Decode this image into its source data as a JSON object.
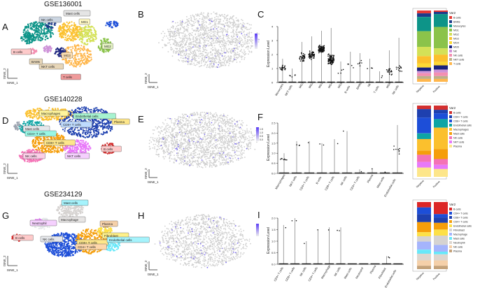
{
  "titles": [
    "GSE136001",
    "GSE140228",
    "GSE234129"
  ],
  "panel_letters": [
    "A",
    "B",
    "C",
    "D",
    "E",
    "F",
    "G",
    "H",
    "I"
  ],
  "axis": {
    "tsne1": "tSNE_1",
    "tsne2": "tSNE_2",
    "ylabel": "Expression Level"
  },
  "colors": {
    "row1": [
      "#e53935",
      "#1e3a8a",
      "#0d9488",
      "#8bc34a",
      "#d4e157",
      "#fbc02d",
      "#fdd835",
      "#1a237e",
      "#ce93d8",
      "#f48fb1",
      "#bdb08a",
      "#ffb74d"
    ],
    "row2": [
      "#d32f2f",
      "#1e40af",
      "#1d4ed8",
      "#0ea5a5",
      "#fbc02d",
      "#f59e0b",
      "#f472b6",
      "#e879f9",
      "#fde68a"
    ],
    "row3": [
      "#dc2626",
      "#1d4ed8",
      "#1e40af",
      "#f59e0b",
      "#fde047",
      "#d6d3d1",
      "#a5b4fc",
      "#67e8f9",
      "#ddd6cf",
      "#f5d0a9",
      "#c4a27a"
    ]
  },
  "row1": {
    "umap_labels": [
      "Mast cells",
      "NK cells",
      "MG1",
      "MG2",
      "MG3",
      "MG4",
      "MG5",
      "B cells",
      "NKT cells",
      "BAMs",
      "T cells",
      "Monocytes",
      "Vascular"
    ],
    "violin_cats": [
      "Monocytes",
      "NKT cells",
      "MG3",
      "MG2",
      "MG1",
      "MG4",
      "MG5",
      "B cells",
      "BAMs",
      "NK",
      "T cells",
      "MG6",
      "NK cells"
    ],
    "legend_title": "Var2",
    "legend": [
      "B cells",
      "BAMs",
      "Monocytes",
      "MG1",
      "MG2",
      "MG3",
      "MG4",
      "MG5",
      "NK",
      "NK cells",
      "NKT cells",
      "T cells"
    ],
    "bar_x": [
      "Negative",
      "Positive"
    ],
    "y_ticks": [
      "0",
      "1",
      "2",
      "3",
      "4"
    ]
  },
  "row2": {
    "umap_labels": [
      "Macrophages",
      "Endothelial cells",
      "Plasma",
      "Mast cells",
      "CD4+ T cells",
      "CD8+ T cells",
      "CD8+ T cells",
      "NKT cells",
      "NK cells",
      "B cells"
    ],
    "violin_cats": [
      "Macrophages",
      "NKT cells",
      "CD4+ T cells",
      "B cells",
      "CD8+ T cells",
      "NK cells",
      "CD4+ T cells",
      "Plasma",
      "Mast cells",
      "Endothelial cells"
    ],
    "legend_title": "Var2",
    "legend": [
      "B cells",
      "CD4+ T cells",
      "CD8+ T cells",
      "Endothelial cells",
      "Macrophages",
      "Mast cells",
      "NK cells",
      "NKT cells",
      "Plasma"
    ],
    "bar_x": [
      "Negative",
      "Positive"
    ],
    "y_ticks": [
      "0.0",
      "0.5",
      "1.0",
      "1.5",
      "2.0",
      "2.5"
    ],
    "scale_ticks": [
      "1.5",
      "1.0",
      "0.5",
      "0.0"
    ]
  },
  "row3": {
    "umap_labels": [
      "Mast cells",
      "Neutrophil",
      "Macrophage",
      "Plasma",
      "B cells",
      "NK cells",
      "CD8+ T cells",
      "CD4+ T cells",
      "Fibroblast",
      "Endothelial cells"
    ],
    "violin_cats": [
      "CD4+ T cells",
      "CD8+ T cells",
      "NK cells",
      "CD4+ T cells",
      "Macrophage",
      "NK cells",
      "Mast cells",
      "Neutrophil",
      "Plasma",
      "Fibroblast",
      "Endothelial cells"
    ],
    "legend_title": "Var2",
    "legend": [
      "B cells",
      "CD4+ T cells",
      "CD8+ T cells",
      "CD4+ T cells",
      "Endothelial cells",
      "Fibroblast",
      "Macrophage",
      "Mast cells",
      "Neutrophil",
      "NK cells",
      "Plasma"
    ],
    "bar_x": [
      "Negative",
      "Positive"
    ],
    "y_ticks": [
      "0.0",
      "0.5",
      "1.0",
      "1.5",
      "2.0"
    ]
  }
}
